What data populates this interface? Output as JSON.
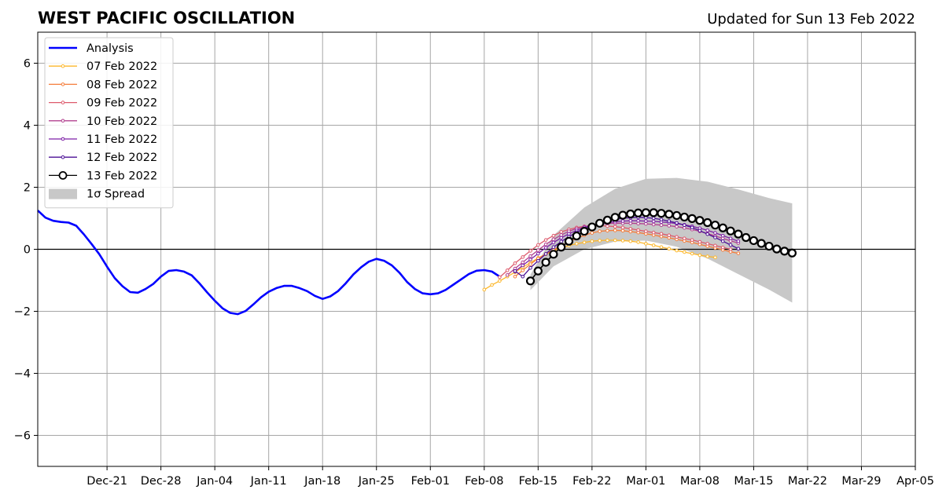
{
  "chart_data": {
    "type": "line",
    "title": "WEST PACIFIC OSCILLATION",
    "subtitle": "Updated for Sun 13 Feb 2022",
    "xlabel": "",
    "ylabel": "",
    "x_axis": {
      "type": "date",
      "range": [
        "2021-12-12",
        "2022-04-05"
      ],
      "ticks": [
        "2021-12-21",
        "2021-12-28",
        "2022-01-04",
        "2022-01-11",
        "2022-01-18",
        "2022-01-25",
        "2022-02-01",
        "2022-02-08",
        "2022-02-15",
        "2022-02-22",
        "2022-03-01",
        "2022-03-08",
        "2022-03-15",
        "2022-03-22",
        "2022-03-29",
        "2022-04-05"
      ],
      "tick_labels": [
        "Dec-21",
        "Dec-28",
        "Jan-04",
        "Jan-11",
        "Jan-18",
        "Jan-25",
        "Feb-01",
        "Feb-08",
        "Feb-15",
        "Feb-22",
        "Mar-01",
        "Mar-08",
        "Mar-15",
        "Mar-22",
        "Mar-29",
        "Apr-05"
      ]
    },
    "y_axis": {
      "range": [
        -7,
        7
      ],
      "ticks": [
        -6,
        -4,
        -2,
        0,
        2,
        4,
        6
      ],
      "tick_labels": [
        "−6",
        "−4",
        "−2",
        "0",
        "2",
        "4",
        "6"
      ]
    },
    "grid": true,
    "legend_position": "top-left",
    "analysis": {
      "name": "Analysis",
      "color": "#0000ff",
      "start_date": "2021-12-12",
      "values": [
        1.25,
        1.02,
        0.92,
        0.88,
        0.86,
        0.76,
        0.48,
        0.17,
        -0.16,
        -0.56,
        -0.93,
        -1.19,
        -1.38,
        -1.4,
        -1.28,
        -1.12,
        -0.88,
        -0.7,
        -0.67,
        -0.72,
        -0.84,
        -1.1,
        -1.39,
        -1.66,
        -1.9,
        -2.05,
        -2.09,
        -1.99,
        -1.78,
        -1.55,
        -1.37,
        -1.25,
        -1.18,
        -1.18,
        -1.25,
        -1.35,
        -1.5,
        -1.6,
        -1.52,
        -1.35,
        -1.1,
        -0.81,
        -0.58,
        -0.4,
        -0.31,
        -0.37,
        -0.52,
        -0.76,
        -1.06,
        -1.28,
        -1.42,
        -1.45,
        -1.42,
        -1.31,
        -1.14,
        -0.97,
        -0.8,
        -0.69,
        -0.67,
        -0.72,
        -0.88
      ]
    },
    "spread": {
      "name": "1σ Spread",
      "color": "#c8c8c8",
      "x": [
        "2022-02-14",
        "2022-02-17",
        "2022-02-21",
        "2022-02-25",
        "2022-03-01",
        "2022-03-05",
        "2022-03-09",
        "2022-03-13",
        "2022-03-17",
        "2022-03-20"
      ],
      "upper": [
        -0.82,
        0.45,
        1.35,
        1.95,
        2.27,
        2.3,
        2.18,
        1.93,
        1.65,
        1.48
      ],
      "lower": [
        -1.32,
        -0.55,
        0.0,
        0.25,
        0.28,
        0.08,
        -0.3,
        -0.8,
        -1.3,
        -1.72
      ]
    },
    "forecasts": [
      {
        "name": "07 Feb 2022",
        "color": "#fcb72b",
        "start_date": "2022-02-08",
        "values": [
          -1.3,
          -1.15,
          -1.02,
          -0.88,
          -0.74,
          -0.58,
          -0.43,
          -0.28,
          -0.16,
          -0.05,
          0.05,
          0.12,
          0.18,
          0.22,
          0.26,
          0.28,
          0.29,
          0.29,
          0.28,
          0.26,
          0.23,
          0.18,
          0.13,
          0.07,
          0.02,
          -0.04,
          -0.09,
          -0.14,
          -0.19,
          -0.23,
          -0.26
        ]
      },
      {
        "name": "08 Feb 2022",
        "color": "#f57d3b",
        "start_date": "2022-02-12",
        "values": [
          -0.88,
          -0.68,
          -0.48,
          -0.3,
          -0.15,
          -0.02,
          0.12,
          0.24,
          0.35,
          0.45,
          0.53,
          0.58,
          0.6,
          0.61,
          0.6,
          0.57,
          0.54,
          0.5,
          0.46,
          0.41,
          0.37,
          0.32,
          0.27,
          0.22,
          0.16,
          0.1,
          0.04,
          -0.02,
          -0.08,
          -0.13
        ]
      },
      {
        "name": "09 Feb 2022",
        "color": "#dd5a6c",
        "start_date": "2022-02-10",
        "values": [
          -0.9,
          -0.68,
          -0.45,
          -0.25,
          -0.05,
          0.14,
          0.3,
          0.44,
          0.56,
          0.64,
          0.7,
          0.74,
          0.76,
          0.76,
          0.75,
          0.73,
          0.7,
          0.66,
          0.62,
          0.58,
          0.54,
          0.5,
          0.45,
          0.4,
          0.35,
          0.3,
          0.24,
          0.18,
          0.12,
          0.06,
          0.0
        ]
      },
      {
        "name": "10 Feb 2022",
        "color": "#b2408f",
        "start_date": "2022-02-11",
        "values": [
          -0.83,
          -0.62,
          -0.42,
          -0.22,
          -0.03,
          0.16,
          0.32,
          0.46,
          0.58,
          0.67,
          0.73,
          0.78,
          0.81,
          0.83,
          0.84,
          0.84,
          0.84,
          0.83,
          0.82,
          0.8,
          0.78,
          0.76,
          0.73,
          0.69,
          0.64,
          0.58,
          0.51,
          0.43,
          0.35,
          0.27,
          0.2
        ]
      },
      {
        "name": "11 Feb 2022",
        "color": "#7d1fa6",
        "start_date": "2022-02-12",
        "values": [
          -0.72,
          -0.52,
          -0.33,
          -0.14,
          0.05,
          0.22,
          0.37,
          0.5,
          0.61,
          0.7,
          0.77,
          0.82,
          0.86,
          0.89,
          0.91,
          0.92,
          0.92,
          0.91,
          0.9,
          0.88,
          0.86,
          0.83,
          0.79,
          0.74,
          0.68,
          0.61,
          0.53,
          0.44,
          0.35,
          0.26
        ]
      },
      {
        "name": "12 Feb 2022",
        "color": "#4b0f96",
        "start_date": "2022-02-12",
        "values": [
          -0.7,
          -0.88,
          -0.6,
          -0.37,
          -0.15,
          0.07,
          0.25,
          0.41,
          0.55,
          0.66,
          0.76,
          0.84,
          0.91,
          0.96,
          1.0,
          1.02,
          1.03,
          1.02,
          1.0,
          0.96,
          0.91,
          0.85,
          0.78,
          0.7,
          0.6,
          0.49,
          0.38,
          0.26,
          0.14,
          0.02
        ]
      },
      {
        "name": "13 Feb 2022",
        "color": "#000000",
        "start_date": "2022-02-14",
        "values": [
          -1.02,
          -0.7,
          -0.42,
          -0.16,
          0.07,
          0.26,
          0.43,
          0.58,
          0.72,
          0.84,
          0.94,
          1.03,
          1.1,
          1.14,
          1.17,
          1.18,
          1.18,
          1.16,
          1.13,
          1.09,
          1.04,
          0.99,
          0.93,
          0.86,
          0.78,
          0.69,
          0.59,
          0.49,
          0.38,
          0.28,
          0.19,
          0.1,
          0.01,
          -0.06,
          -0.12
        ]
      }
    ]
  }
}
